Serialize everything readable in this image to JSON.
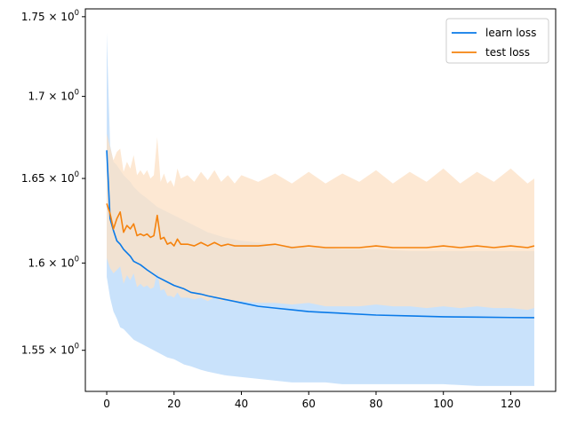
{
  "chart_data": {
    "type": "line",
    "yscale": "log",
    "xlim": [
      -6.35,
      133.35
    ],
    "ylim": [
      1.527,
      1.755
    ],
    "x_ticks": [
      0,
      20,
      40,
      60,
      80,
      100,
      120
    ],
    "x_tick_labels": [
      "0",
      "20",
      "40",
      "60",
      "80",
      "100",
      "120"
    ],
    "y_ticks": [
      1.55,
      1.6,
      1.65,
      1.7,
      1.75
    ],
    "y_tick_labels": [
      {
        "base": "1.55 × 10",
        "exp": "0"
      },
      {
        "base": "1.6 × 10",
        "exp": "0"
      },
      {
        "base": "1.65 × 10",
        "exp": "0"
      },
      {
        "base": "1.7 × 10",
        "exp": "0"
      },
      {
        "base": "1.75 × 10",
        "exp": "0"
      }
    ],
    "grid": false,
    "legend": {
      "position": "top-right",
      "entries": [
        "learn loss",
        "test loss"
      ]
    },
    "series": [
      {
        "name": "learn loss",
        "color": "#0a7ae8",
        "band_color": "#c9e2fb",
        "x": [
          0,
          1,
          2,
          3,
          4,
          5,
          7,
          8,
          10,
          12,
          15,
          18,
          20,
          23,
          25,
          28,
          30,
          35,
          40,
          45,
          50,
          55,
          60,
          65,
          70,
          80,
          90,
          100,
          110,
          120,
          127
        ],
        "mean": [
          1.667,
          1.626,
          1.619,
          1.613,
          1.611,
          1.608,
          1.604,
          1.601,
          1.599,
          1.596,
          1.592,
          1.589,
          1.587,
          1.585,
          1.583,
          1.582,
          1.581,
          1.579,
          1.577,
          1.575,
          1.574,
          1.573,
          1.572,
          1.5715,
          1.571,
          1.57,
          1.5695,
          1.569,
          1.5688,
          1.5686,
          1.5685
        ],
        "lower": [
          1.592,
          1.58,
          1.572,
          1.568,
          1.563,
          1.562,
          1.558,
          1.556,
          1.554,
          1.552,
          1.549,
          1.546,
          1.545,
          1.542,
          1.541,
          1.539,
          1.538,
          1.536,
          1.535,
          1.534,
          1.533,
          1.532,
          1.532,
          1.532,
          1.531,
          1.531,
          1.531,
          1.531,
          1.53,
          1.53,
          1.53
        ],
        "upper": [
          1.74,
          1.67,
          1.66,
          1.658,
          1.655,
          1.652,
          1.648,
          1.645,
          1.641,
          1.638,
          1.633,
          1.63,
          1.628,
          1.625,
          1.623,
          1.62,
          1.618,
          1.615,
          1.613,
          1.612,
          1.611,
          1.61,
          1.609,
          1.609,
          1.608,
          1.608,
          1.607,
          1.607,
          1.607,
          1.607,
          1.607
        ]
      },
      {
        "name": "test loss",
        "color": "#f5820d",
        "band_color": "#fde2c7",
        "x": [
          0,
          1,
          2,
          3,
          4,
          5,
          6,
          7,
          8,
          9,
          10,
          11,
          12,
          13,
          14,
          15,
          16,
          17,
          18,
          19,
          20,
          21,
          22,
          24,
          26,
          28,
          30,
          32,
          34,
          36,
          38,
          40,
          45,
          50,
          55,
          60,
          65,
          70,
          75,
          80,
          85,
          90,
          95,
          100,
          105,
          110,
          115,
          120,
          125,
          127
        ],
        "mean": [
          1.635,
          1.629,
          1.62,
          1.626,
          1.63,
          1.618,
          1.622,
          1.62,
          1.623,
          1.616,
          1.617,
          1.616,
          1.617,
          1.615,
          1.616,
          1.628,
          1.614,
          1.615,
          1.611,
          1.612,
          1.61,
          1.614,
          1.611,
          1.611,
          1.61,
          1.612,
          1.61,
          1.612,
          1.61,
          1.611,
          1.61,
          1.61,
          1.61,
          1.611,
          1.609,
          1.61,
          1.609,
          1.609,
          1.609,
          1.61,
          1.609,
          1.609,
          1.609,
          1.61,
          1.609,
          1.61,
          1.609,
          1.61,
          1.609,
          1.61
        ],
        "lower": [
          1.603,
          1.597,
          1.594,
          1.596,
          1.598,
          1.588,
          1.593,
          1.59,
          1.594,
          1.586,
          1.588,
          1.586,
          1.587,
          1.585,
          1.586,
          1.595,
          1.584,
          1.585,
          1.581,
          1.581,
          1.58,
          1.583,
          1.58,
          1.58,
          1.579,
          1.58,
          1.578,
          1.58,
          1.578,
          1.579,
          1.577,
          1.578,
          1.577,
          1.577,
          1.576,
          1.577,
          1.575,
          1.575,
          1.575,
          1.576,
          1.575,
          1.575,
          1.574,
          1.575,
          1.574,
          1.575,
          1.574,
          1.574,
          1.573,
          1.574
        ],
        "upper": [
          1.677,
          1.669,
          1.661,
          1.666,
          1.668,
          1.654,
          1.66,
          1.656,
          1.664,
          1.652,
          1.655,
          1.652,
          1.655,
          1.65,
          1.652,
          1.675,
          1.648,
          1.653,
          1.647,
          1.649,
          1.645,
          1.656,
          1.65,
          1.652,
          1.648,
          1.654,
          1.649,
          1.655,
          1.648,
          1.652,
          1.647,
          1.652,
          1.648,
          1.653,
          1.647,
          1.654,
          1.647,
          1.653,
          1.648,
          1.655,
          1.647,
          1.654,
          1.648,
          1.656,
          1.647,
          1.654,
          1.648,
          1.656,
          1.647,
          1.65
        ]
      }
    ]
  }
}
